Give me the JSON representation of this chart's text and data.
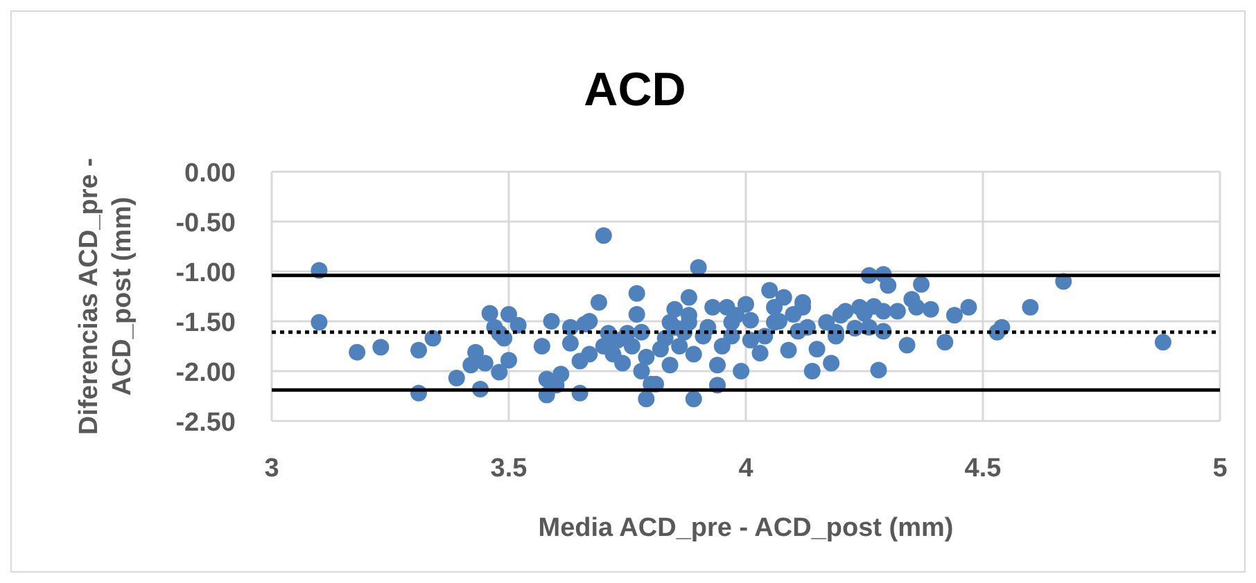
{
  "chart_data": {
    "type": "scatter",
    "title": "ACD",
    "xlabel": "Media ACD_pre - ACD_post (mm)",
    "ylabel": "Diferencias ACD_pre - ACD_post (mm)",
    "xlim": [
      3,
      5
    ],
    "xticks": [
      3,
      3.5,
      4,
      4.5,
      5
    ],
    "ylim": [
      -2.5,
      0
    ],
    "yticks": [
      {
        "value": 0,
        "label": "0.00"
      },
      {
        "value": -0.5,
        "label": "-0.50"
      },
      {
        "value": -1,
        "label": "-1.00"
      },
      {
        "value": -1.5,
        "label": "-1.50"
      },
      {
        "value": -2,
        "label": "-2.00"
      },
      {
        "value": -2.5,
        "label": "-2.50"
      }
    ],
    "grid": true,
    "marker": "circle",
    "ref_lines": [
      {
        "axis": "y",
        "value": -1.04,
        "color": "#000000",
        "line_style": "solid"
      },
      {
        "axis": "y",
        "value": -1.61,
        "color": "#000000",
        "line_style": "dotted"
      },
      {
        "axis": "y",
        "value": -2.19,
        "color": "#000000",
        "line_style": "solid"
      }
    ],
    "series": [
      {
        "color": "#4f81bd",
        "x": [
          3.1,
          3.1,
          3.18,
          3.23,
          3.31,
          3.31,
          3.34,
          3.39,
          3.42,
          3.43,
          3.44,
          3.46,
          3.45,
          3.47,
          3.48,
          3.48,
          3.49,
          3.5,
          3.5,
          3.52,
          3.57,
          3.58,
          3.58,
          3.59,
          3.6,
          3.61,
          3.63,
          3.63,
          3.65,
          3.65,
          3.66,
          3.67,
          3.67,
          3.7,
          3.69,
          3.7,
          3.71,
          3.72,
          3.73,
          3.74,
          3.75,
          3.76,
          3.77,
          3.77,
          3.78,
          3.78,
          3.79,
          3.79,
          3.8,
          3.81,
          3.82,
          3.83,
          3.84,
          3.84,
          3.85,
          3.85,
          3.86,
          3.87,
          3.88,
          3.88,
          3.88,
          3.89,
          3.89,
          3.9,
          3.91,
          3.92,
          3.93,
          3.94,
          3.94,
          3.95,
          3.96,
          3.97,
          3.97,
          3.98,
          3.99,
          4.0,
          4.01,
          4.01,
          4.03,
          4.04,
          4.05,
          4.06,
          4.06,
          4.07,
          4.08,
          4.09,
          4.1,
          4.11,
          4.12,
          4.12,
          4.13,
          4.14,
          4.15,
          4.17,
          4.18,
          4.19,
          4.19,
          4.2,
          4.21,
          4.23,
          4.24,
          4.25,
          4.26,
          4.26,
          4.27,
          4.28,
          4.29,
          4.29,
          4.29,
          4.3,
          4.32,
          4.34,
          4.35,
          4.36,
          4.37,
          4.39,
          4.42,
          4.44,
          4.47,
          4.53,
          4.54,
          4.6,
          4.67,
          4.88
        ],
        "values": [
          -0.99,
          -1.51,
          -1.81,
          -1.76,
          -1.79,
          -2.22,
          -1.67,
          -2.07,
          -1.94,
          -1.81,
          -2.18,
          -1.42,
          -1.92,
          -1.56,
          -1.62,
          -2.01,
          -1.67,
          -1.43,
          -1.89,
          -1.54,
          -1.75,
          -2.08,
          -2.24,
          -1.5,
          -2.14,
          -2.03,
          -1.56,
          -1.72,
          -1.9,
          -2.22,
          -1.53,
          -1.5,
          -1.83,
          -1.75,
          -1.31,
          -0.64,
          -1.62,
          -1.83,
          -1.69,
          -1.92,
          -1.62,
          -1.75,
          -1.43,
          -1.22,
          -1.61,
          -2.0,
          -2.28,
          -1.86,
          -2.13,
          -2.13,
          -1.78,
          -1.67,
          -1.51,
          -1.94,
          -1.56,
          -1.38,
          -1.75,
          -1.61,
          -1.51,
          -1.44,
          -1.26,
          -1.83,
          -2.28,
          -0.96,
          -1.65,
          -1.56,
          -1.36,
          -1.94,
          -2.14,
          -1.75,
          -1.36,
          -1.51,
          -1.65,
          -1.44,
          -2.0,
          -1.33,
          -1.49,
          -1.69,
          -1.82,
          -1.65,
          -1.19,
          -1.36,
          -1.51,
          -1.5,
          -1.26,
          -1.79,
          -1.43,
          -1.6,
          -1.36,
          -1.31,
          -1.56,
          -2.0,
          -1.78,
          -1.51,
          -1.92,
          -1.61,
          -1.65,
          -1.44,
          -1.4,
          -1.57,
          -1.36,
          -1.42,
          -1.56,
          -1.04,
          -1.35,
          -1.99,
          -1.6,
          -1.4,
          -1.03,
          -1.14,
          -1.4,
          -1.74,
          -1.28,
          -1.36,
          -1.13,
          -1.38,
          -1.71,
          -1.44,
          -1.36,
          -1.61,
          -1.56,
          -1.36,
          -1.1,
          -1.71
        ]
      }
    ]
  }
}
